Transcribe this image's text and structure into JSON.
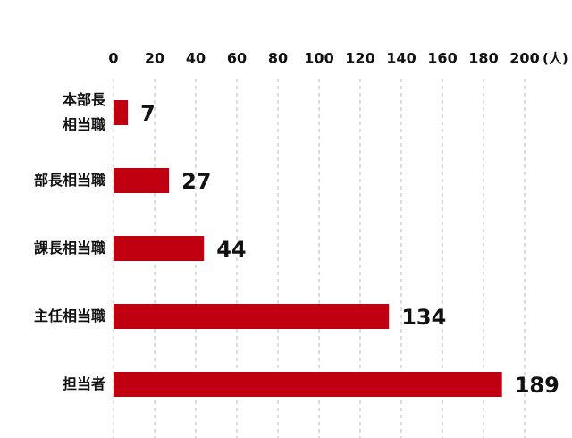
{
  "chart_data": {
    "type": "hbar",
    "categories": [
      "本部長\n相当職",
      "部長相当職",
      "課長相当職",
      "主任相当職",
      "担当者"
    ],
    "values": [
      7,
      27,
      44,
      134,
      189
    ],
    "color": "#c00010",
    "xlim": [
      0,
      200
    ],
    "xticks": [
      0,
      20,
      40,
      60,
      80,
      100,
      120,
      140,
      160,
      180,
      200
    ],
    "x_unit": "(人)",
    "grid": true
  }
}
